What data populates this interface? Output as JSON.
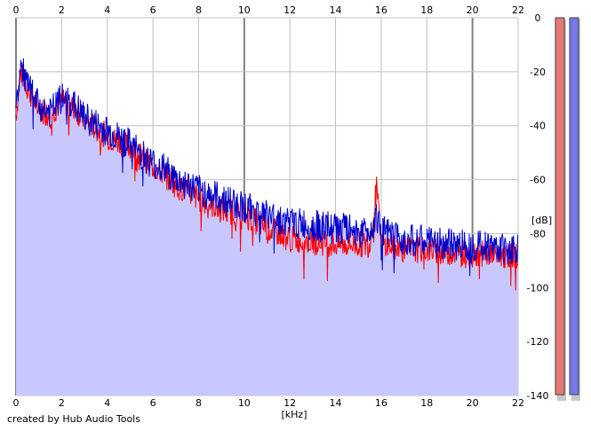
{
  "chart_data": {
    "type": "area",
    "title": "",
    "xlabel": "[kHz]",
    "ylabel": "[dB]",
    "xlim": [
      0,
      22
    ],
    "ylim": [
      -140,
      0
    ],
    "x_ticks": [
      "0",
      "2",
      "4",
      "6",
      "8",
      "10",
      "12",
      "14",
      "16",
      "18",
      "20",
      "22"
    ],
    "y_ticks": [
      "0",
      "-20",
      "-40",
      "-60",
      "-80",
      "-100",
      "-120",
      "-140"
    ],
    "grid": true,
    "fill_color": "#c8c8ff",
    "series": [
      {
        "color": "#0000cc",
        "x": [
          0,
          0.2,
          0.5,
          1,
          1.5,
          2,
          2.5,
          3,
          4,
          5,
          6,
          6.5,
          7,
          8,
          9,
          10,
          11,
          12,
          13,
          14,
          15,
          15.5,
          15.8,
          16,
          16.5,
          17,
          18,
          19,
          20,
          21,
          22
        ],
        "y": [
          -35,
          -18,
          -25,
          -33,
          -35,
          -30,
          -32,
          -37,
          -42,
          -47,
          -54,
          -56,
          -60,
          -64,
          -67,
          -70,
          -73,
          -76,
          -77,
          -78,
          -79,
          -79,
          -73,
          -79,
          -81,
          -82,
          -83,
          -84,
          -84,
          -85,
          -86
        ]
      },
      {
        "color": "#ff0000",
        "x": [
          0,
          0.2,
          0.5,
          1,
          1.5,
          2,
          2.5,
          3,
          4,
          5,
          6,
          6.5,
          7,
          8,
          9,
          10,
          11,
          12,
          13,
          14,
          15,
          15.5,
          15.8,
          16,
          16.5,
          17,
          18,
          19,
          20,
          21,
          22
        ],
        "y": [
          -36,
          -20,
          -26,
          -34,
          -36,
          -31,
          -33,
          -38,
          -44,
          -48,
          -55,
          -58,
          -62,
          -67,
          -71,
          -73,
          -78,
          -82,
          -83,
          -84,
          -84,
          -84,
          -63,
          -84,
          -85,
          -86,
          -86,
          -87,
          -87,
          -88,
          -88
        ]
      }
    ],
    "meters": [
      {
        "channel": "left",
        "color": "#e87878"
      },
      {
        "channel": "right",
        "color": "#7878e8"
      }
    ]
  },
  "credit": "created by Hub Audio Tools"
}
